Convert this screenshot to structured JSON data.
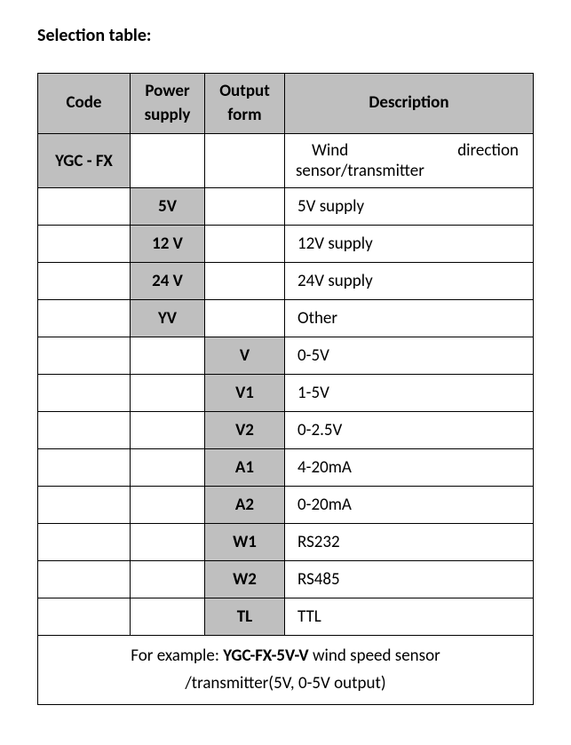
{
  "heading": "Selection table:",
  "table": {
    "headers": {
      "code": "Code",
      "power": "Power supply",
      "output": "Output form",
      "description": "Description"
    },
    "rows": [
      {
        "code": "YGC - FX",
        "power": "",
        "output": "",
        "desc_word1": "Wind",
        "desc_word2": "direction",
        "desc_line2": "sensor/transmitter",
        "code_shaded": true,
        "desc_justify": true
      },
      {
        "code": "",
        "power": "5V",
        "output": "",
        "desc": "5V supply",
        "power_shaded": true
      },
      {
        "code": "",
        "power": "12 V",
        "output": "",
        "desc": "12V supply",
        "power_shaded": true
      },
      {
        "code": "",
        "power": "24 V",
        "output": "",
        "desc": "24V supply",
        "power_shaded": true
      },
      {
        "code": "",
        "power": "YV",
        "output": "",
        "desc": "Other",
        "power_shaded": true
      },
      {
        "code": "",
        "power": "",
        "output": "V",
        "desc": "0-5V",
        "output_shaded": true
      },
      {
        "code": "",
        "power": "",
        "output": "V1",
        "desc": "1-5V",
        "output_shaded": true
      },
      {
        "code": "",
        "power": "",
        "output": "V2",
        "desc": "0-2.5V",
        "output_shaded": true
      },
      {
        "code": "",
        "power": "",
        "output": "A1",
        "desc": "4-20mA",
        "output_shaded": true
      },
      {
        "code": "",
        "power": "",
        "output": "A2",
        "desc": "0-20mA",
        "output_shaded": true
      },
      {
        "code": "",
        "power": "",
        "output": "W1",
        "desc": "RS232",
        "output_shaded": true
      },
      {
        "code": "",
        "power": "",
        "output": "W2",
        "desc": "RS485",
        "output_shaded": true
      },
      {
        "code": "",
        "power": "",
        "output": "TL",
        "desc": "TTL",
        "output_shaded": true
      }
    ],
    "footer": {
      "prefix": "For example: ",
      "bold": "YGC-FX-5V-V",
      "suffix1": " wind speed sensor",
      "suffix2": "/transmitter(5V, 0-5V output)"
    },
    "colors": {
      "shaded_bg": "#bfbfbf",
      "border": "#000000",
      "background": "#ffffff"
    }
  }
}
